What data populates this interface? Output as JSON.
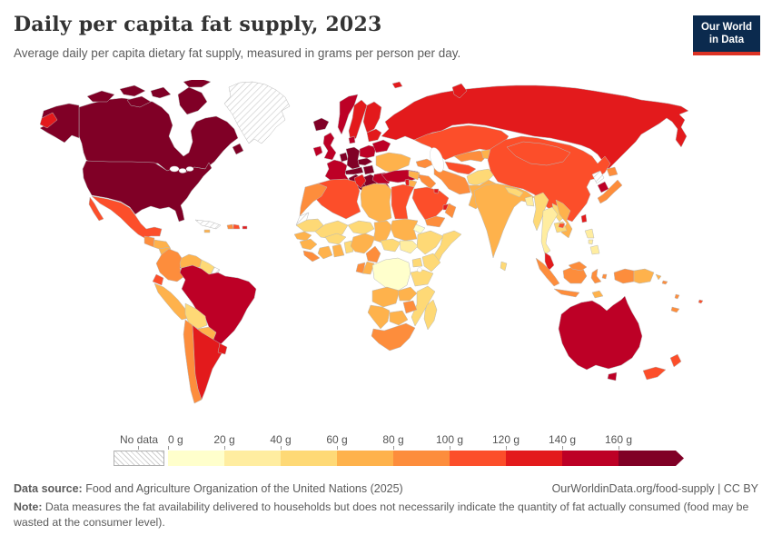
{
  "header": {
    "title": "Daily per capita fat supply, 2023",
    "subtitle": "Average daily per capita dietary fat supply, measured in grams per person per day.",
    "logo_line1": "Our World",
    "logo_line2": "in Data",
    "logo_bg": "#0b2a4e",
    "logo_accent": "#dc3224"
  },
  "legend": {
    "no_data_label": "No data",
    "bins": [
      {
        "label": "0 g",
        "range": "0–20 g",
        "color": "#FFFFCC"
      },
      {
        "label": "20 g",
        "range": "20–40 g",
        "color": "#FFEDA0"
      },
      {
        "label": "40 g",
        "range": "40–60 g",
        "color": "#FED976"
      },
      {
        "label": "60 g",
        "range": "60–80 g",
        "color": "#FEB24C"
      },
      {
        "label": "80 g",
        "range": "80–100 g",
        "color": "#FD8D3C"
      },
      {
        "label": "100 g",
        "range": "100–120 g",
        "color": "#FC4E2A"
      },
      {
        "label": "120 g",
        "range": "120–140 g",
        "color": "#E31A1C"
      },
      {
        "label": "140 g",
        "range": "140–160 g",
        "color": "#BD0026"
      },
      {
        "label": "160 g",
        "range": "160+ g",
        "color": "#800026"
      }
    ]
  },
  "footer": {
    "source_label": "Data source:",
    "source_text": " Food and Agriculture Organization of the United Nations (2025)",
    "link": "OurWorldinData.org/food-supply | CC BY",
    "note_label": "Note:",
    "note_text": " Data measures the fat availability delivered to households but does not necessarily indicate the quantity of fat actually consumed (food may be wasted at the consumer level)."
  },
  "chart_data": {
    "type": "choropleth_map",
    "title": "Daily per capita fat supply",
    "year": 2023,
    "unit": "grams per person per day",
    "legend_bins": [
      "0-20",
      "20-40",
      "40-60",
      "60-80",
      "80-100",
      "100-120",
      "120-140",
      "140-160",
      "160+"
    ],
    "no_data_style": "gray diagonal hatch",
    "countries": {
      "canada": {
        "name": "Canada",
        "bin": 8
      },
      "usa": {
        "name": "United States",
        "bin": 8
      },
      "alaska": {
        "name": "United States (Alaska)",
        "bin": 8
      },
      "chukotka": {
        "name": "Russia (Chukotka wrap)",
        "bin": 6
      },
      "greenland": {
        "name": "Greenland",
        "bin": "nd"
      },
      "iceland": {
        "name": "Iceland",
        "bin": 8
      },
      "mexico": {
        "name": "Mexico",
        "bin": 5
      },
      "guatemala": {
        "name": "Guatemala",
        "bin": 4
      },
      "honduras": {
        "name": "Honduras",
        "bin": 3
      },
      "nicaragua": {
        "name": "Nicaragua",
        "bin": 3
      },
      "costarica": {
        "name": "Costa Rica",
        "bin": 4
      },
      "panama": {
        "name": "Panama",
        "bin": 5
      },
      "cuba": {
        "name": "Cuba",
        "bin": "nd"
      },
      "haiti": {
        "name": "Haiti",
        "bin": 4
      },
      "domrep": {
        "name": "Dominican Republic",
        "bin": 5
      },
      "jamaica": {
        "name": "Jamaica",
        "bin": 3
      },
      "puertorico": {
        "name": "Puerto Rico",
        "bin": 6
      },
      "colombia": {
        "name": "Colombia",
        "bin": 4
      },
      "venezuela": {
        "name": "Venezuela",
        "bin": 3
      },
      "guyana": {
        "name": "Guyana / Suriname",
        "bin": 2
      },
      "frguiana": {
        "name": "French Guiana",
        "bin": "nd"
      },
      "ecuador": {
        "name": "Ecuador",
        "bin": 5
      },
      "peru": {
        "name": "Peru",
        "bin": 3
      },
      "brazil": {
        "name": "Brazil",
        "bin": 7
      },
      "bolivia": {
        "name": "Bolivia",
        "bin": 2
      },
      "paraguay": {
        "name": "Paraguay",
        "bin": 3
      },
      "chile": {
        "name": "Chile",
        "bin": 4
      },
      "argentina": {
        "name": "Argentina",
        "bin": 6
      },
      "uruguay": {
        "name": "Uruguay",
        "bin": 6
      },
      "uk": {
        "name": "United Kingdom",
        "bin": 7
      },
      "ireland": {
        "name": "Ireland",
        "bin": 7
      },
      "norway": {
        "name": "Norway",
        "bin": 7
      },
      "sweden": {
        "name": "Sweden",
        "bin": 6
      },
      "finland": {
        "name": "Finland",
        "bin": 6
      },
      "denmark": {
        "name": "Denmark",
        "bin": 7
      },
      "portugal": {
        "name": "Portugal",
        "bin": 7
      },
      "spain": {
        "name": "Spain",
        "bin": 7
      },
      "france": {
        "name": "France",
        "bin": 7
      },
      "benelux": {
        "name": "Belgium / Netherlands",
        "bin": 8
      },
      "germany": {
        "name": "Germany",
        "bin": 8
      },
      "czechoslovakia": {
        "name": "Czechia / Slovakia",
        "bin": 8
      },
      "poland": {
        "name": "Poland",
        "bin": 7
      },
      "alpine": {
        "name": "Switzerland / Austria",
        "bin": 8
      },
      "hungary": {
        "name": "Hungary",
        "bin": 8
      },
      "italy": {
        "name": "Italy",
        "bin": 8
      },
      "balkans": {
        "name": "Ex-Yugoslavia",
        "bin": 8
      },
      "albania": {
        "name": "Albania",
        "bin": 7
      },
      "greece": {
        "name": "Greece",
        "bin": 7
      },
      "bulgaria": {
        "name": "Bulgaria",
        "bin": 7
      },
      "romania": {
        "name": "Romania",
        "bin": 7
      },
      "moldova": {
        "name": "Moldova",
        "bin": 3
      },
      "ukraine": {
        "name": "Ukraine",
        "bin": 3
      },
      "belarus": {
        "name": "Belarus",
        "bin": 7
      },
      "baltics": {
        "name": "Baltic states",
        "bin": 6
      },
      "russia": {
        "name": "Russia",
        "bin": 6
      },
      "novayazemlya": {
        "name": "Russia (Novaya Zemlya)",
        "bin": 6
      },
      "svalbard": {
        "name": "Svalbard",
        "bin": 6
      },
      "turkey": {
        "name": "Turkey",
        "bin": 7
      },
      "caucasus": {
        "name": "Caucasus states",
        "bin": 4
      },
      "syria": {
        "name": "Syria",
        "bin": 3
      },
      "israel": {
        "name": "Israel",
        "bin": 6
      },
      "jordan": {
        "name": "Jordan",
        "bin": 3
      },
      "iraq": {
        "name": "Iraq",
        "bin": 4
      },
      "saudi": {
        "name": "Saudi Arabia",
        "bin": 5
      },
      "yemen": {
        "name": "Yemen",
        "bin": 4
      },
      "oman": {
        "name": "Oman",
        "bin": 4
      },
      "uae": {
        "name": "United Arab Emirates",
        "bin": 6
      },
      "kuwait": {
        "name": "Kuwait",
        "bin": 6
      },
      "iran": {
        "name": "Iran",
        "bin": 4
      },
      "kazakhstan": {
        "name": "Kazakhstan",
        "bin": 5
      },
      "uzbekistan": {
        "name": "Uzbekistan",
        "bin": 4
      },
      "turkmenistan": {
        "name": "Turkmenistan",
        "bin": 5
      },
      "kyrgyztajik": {
        "name": "Kyrgyzstan / Tajikistan",
        "bin": 3
      },
      "afghanistan": {
        "name": "Afghanistan",
        "bin": 2
      },
      "pakistan": {
        "name": "Pakistan",
        "bin": 3
      },
      "india": {
        "name": "India",
        "bin": 3
      },
      "nepal": {
        "name": "Nepal",
        "bin": 2
      },
      "bangladesh": {
        "name": "Bangladesh",
        "bin": 1
      },
      "srilanka": {
        "name": "Sri Lanka",
        "bin": 2
      },
      "myanmar": {
        "name": "Myanmar",
        "bin": 2
      },
      "thailand": {
        "name": "Thailand",
        "bin": 1
      },
      "laos": {
        "name": "Laos",
        "bin": 2
      },
      "cambodia": {
        "name": "Cambodia",
        "bin": 2
      },
      "vietnam": {
        "name": "Vietnam",
        "bin": 3
      },
      "china": {
        "name": "China",
        "bin": 5
      },
      "mongolia": {
        "name": "Mongolia",
        "bin": 5
      },
      "hainan": {
        "name": "China (Hainan)",
        "bin": 5
      },
      "northkorea": {
        "name": "North Korea",
        "bin": "nd"
      },
      "southkorea": {
        "name": "South Korea",
        "bin": 7
      },
      "japan": {
        "name": "Japan",
        "bin": 4
      },
      "taiwan": {
        "name": "Taiwan",
        "bin": 6
      },
      "philippines": {
        "name": "Philippines",
        "bin": 1
      },
      "malaysia": {
        "name": "Malaysia (peninsula)",
        "bin": 6
      },
      "eastmalaysia": {
        "name": "Malaysia (Borneo)",
        "bin": 4
      },
      "indonesia": {
        "name": "Indonesia",
        "bin": 4
      },
      "timor": {
        "name": "Timor-Leste",
        "bin": 3
      },
      "png": {
        "name": "Papua New Guinea",
        "bin": 3
      },
      "solomons": {
        "name": "Solomon Islands",
        "bin": 4
      },
      "vanuatu": {
        "name": "Vanuatu",
        "bin": 4
      },
      "newcaledonia": {
        "name": "New Caledonia",
        "bin": 4
      },
      "fiji": {
        "name": "Fiji",
        "bin": 5
      },
      "australia": {
        "name": "Australia",
        "bin": 7
      },
      "tasmania": {
        "name": "Australia (Tasmania)",
        "bin": 7
      },
      "newzealand": {
        "name": "New Zealand",
        "bin": 5
      },
      "morocco": {
        "name": "Morocco",
        "bin": 4
      },
      "wsahara": {
        "name": "Western Sahara",
        "bin": "nd"
      },
      "algeria": {
        "name": "Algeria",
        "bin": 5
      },
      "tunisia": {
        "name": "Tunisia",
        "bin": 6
      },
      "libya": {
        "name": "Libya",
        "bin": 3
      },
      "egypt": {
        "name": "Egypt",
        "bin": 5
      },
      "mauritania": {
        "name": "Mauritania",
        "bin": 2
      },
      "mali": {
        "name": "Mali",
        "bin": 2
      },
      "niger": {
        "name": "Niger",
        "bin": 2
      },
      "chad": {
        "name": "Chad",
        "bin": 3
      },
      "sudan": {
        "name": "Sudan",
        "bin": 3
      },
      "southsudan": {
        "name": "South Sudan",
        "bin": 1
      },
      "eritrea": {
        "name": "Eritrea",
        "bin": 0
      },
      "ethiopia": {
        "name": "Ethiopia",
        "bin": 2
      },
      "somalia": {
        "name": "Somalia",
        "bin": 2
      },
      "senegal": {
        "name": "Senegal",
        "bin": 3
      },
      "guinea": {
        "name": "Guinea",
        "bin": 3
      },
      "sierraliberia": {
        "name": "Sierra Leone / Liberia",
        "bin": 4
      },
      "ivorycoast": {
        "name": "Côte d'Ivoire",
        "bin": 3
      },
      "burkina": {
        "name": "Burkina Faso",
        "bin": 2
      },
      "ghana": {
        "name": "Ghana",
        "bin": 3
      },
      "togobenin": {
        "name": "Togo / Benin",
        "bin": 2
      },
      "nigeria": {
        "name": "Nigeria",
        "bin": 3
      },
      "cameroon": {
        "name": "Cameroon",
        "bin": 4
      },
      "car": {
        "name": "Central African Republic",
        "bin": 2
      },
      "gabon": {
        "name": "Gabon",
        "bin": 4
      },
      "congo": {
        "name": "Congo",
        "bin": 3
      },
      "drc": {
        "name": "Democratic Republic of Congo",
        "bin": 0
      },
      "uganda": {
        "name": "Uganda",
        "bin": 2
      },
      "kenya": {
        "name": "Kenya",
        "bin": 2
      },
      "tanzania": {
        "name": "Tanzania",
        "bin": 2
      },
      "angola": {
        "name": "Angola",
        "bin": 3
      },
      "zambia": {
        "name": "Zambia",
        "bin": 3
      },
      "mozambique": {
        "name": "Mozambique",
        "bin": 2
      },
      "zimbabwe": {
        "name": "Zimbabwe",
        "bin": 4
      },
      "namibia": {
        "name": "Namibia",
        "bin": 3
      },
      "botswana": {
        "name": "Botswana",
        "bin": 3
      },
      "southafrica": {
        "name": "South Africa",
        "bin": 4
      },
      "madagascar": {
        "name": "Madagascar",
        "bin": 2
      }
    }
  }
}
